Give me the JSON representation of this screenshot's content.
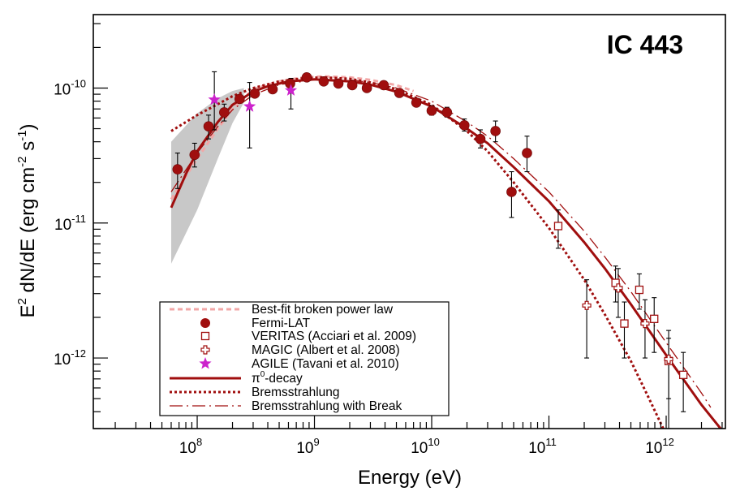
{
  "chart_data": {
    "type": "scatter",
    "title": "IC 443",
    "xlabel": "Energy (eV)",
    "ylabel": {
      "prefix": "E",
      "prefix_sup": "2",
      "mid": " dN/dE (erg cm",
      "sup1": "-2",
      "mid2": " s",
      "sup2": "-1",
      "suffix": ")"
    },
    "xscale": "log",
    "yscale": "log",
    "xlim": [
      13000000.0,
      3200000000000.0
    ],
    "ylim": [
      3e-13,
      3.5e-10
    ],
    "grid": false,
    "legend_position": "bottom-left",
    "x_ticks": [
      {
        "base": "10",
        "exp": "8",
        "value": 100000000.0
      },
      {
        "base": "10",
        "exp": "9",
        "value": 1000000000.0
      },
      {
        "base": "10",
        "exp": "10",
        "value": 10000000000.0
      },
      {
        "base": "10",
        "exp": "11",
        "value": 100000000000.0
      },
      {
        "base": "10",
        "exp": "12",
        "value": 1000000000000.0
      }
    ],
    "y_ticks": [
      {
        "base": "10",
        "exp": "-10",
        "value": 1e-10
      },
      {
        "base": "10",
        "exp": "-11",
        "value": 1e-11
      },
      {
        "base": "10",
        "exp": "-12",
        "value": 1e-12
      }
    ],
    "colors": {
      "dark_red": "#a00e0e",
      "light_pink": "#f2a7a7",
      "magenta": "#cc22cc",
      "band": "#c8c8c8",
      "error": "#000000"
    },
    "legend": [
      {
        "label": "Best-fit broken power law",
        "marker": "pink-dashed-line"
      },
      {
        "label": "Fermi-LAT",
        "marker": "filled-circle"
      },
      {
        "label": "VERITAS (Acciari et al. 2009)",
        "marker": "open-square"
      },
      {
        "label": "MAGIC (Albert et al. 2008)",
        "marker": "open-cross"
      },
      {
        "label": "AGILE (Tavani et al. 2010)",
        "marker": "star"
      },
      {
        "label_base": "π",
        "label_sup": "0",
        "label_rest": "-decay",
        "marker": "solid-line"
      },
      {
        "label": "Bremsstrahlung",
        "marker": "dotted-line"
      },
      {
        "label": "Bremsstrahlung with Break",
        "marker": "long-dash-line"
      }
    ],
    "series": [
      {
        "name": "Fermi-LAT",
        "marker": "filled-circle",
        "x": [
          68000000.0,
          95000000.0,
          125000000.0,
          170000000.0,
          230000000.0,
          310000000.0,
          440000000.0,
          620000000.0,
          860000000.0,
          1200000000.0,
          1600000000.0,
          2100000000.0,
          2800000000.0,
          3900000000.0,
          5300000000.0,
          7400000000.0,
          10000000000.0,
          13500000000.0,
          19000000000.0,
          26000000000.0,
          35000000000.0,
          48000000000.0,
          65000000000.0
        ],
        "y": [
          2.5e-11,
          3.2e-11,
          5.2e-11,
          6.6e-11,
          8.3e-11,
          9.1e-11,
          9.8e-11,
          1.08e-10,
          1.2e-10,
          1.12e-10,
          1.08e-10,
          1.05e-10,
          1e-10,
          1.05e-10,
          9.2e-11,
          7.8e-11,
          6.8e-11,
          6.6e-11,
          5.3e-11,
          4.2e-11,
          4.8e-11,
          1.7e-11,
          3.3e-11
        ],
        "y_err_low": [
          1.8e-11,
          2.6e-11,
          4.2e-11,
          5.7e-11,
          7.8e-11,
          8.7e-11,
          9.5e-11,
          1.05e-10,
          1.17e-10,
          1.1e-10,
          1.06e-10,
          1.03e-10,
          9.8e-11,
          1.02e-10,
          8.9e-11,
          7.4e-11,
          6.3e-11,
          6.1e-11,
          4.8e-11,
          3.6e-11,
          4e-11,
          1.1e-11,
          2.4e-11
        ],
        "y_err_high": [
          3.3e-11,
          3.9e-11,
          6.3e-11,
          7.6e-11,
          8.9e-11,
          9.5e-11,
          1.02e-10,
          1.12e-10,
          1.24e-10,
          1.15e-10,
          1.11e-10,
          1.08e-10,
          1.03e-10,
          1.09e-10,
          9.6e-11,
          8.3e-11,
          7.4e-11,
          7.2e-11,
          5.9e-11,
          4.9e-11,
          5.7e-11,
          2.4e-11,
          4.4e-11
        ]
      },
      {
        "name": "VERITAS (Acciari et al. 2009)",
        "marker": "open-square",
        "x": [
          120000000000.0,
          370000000000.0,
          440000000000.0,
          590000000000.0,
          790000000000.0,
          1050000000000.0,
          1400000000000.0
        ],
        "y": [
          9.5e-12,
          3.6e-12,
          1.8e-12,
          3.2e-12,
          1.95e-12,
          9.5e-13,
          7.5e-13
        ],
        "y_err_low": [
          6.5e-12,
          2.6e-12,
          1e-12,
          2.3e-12,
          1.1e-12,
          5e-13,
          4e-13
        ],
        "y_err_high": [
          1.25e-11,
          4.8e-12,
          2.6e-12,
          4.2e-12,
          2.8e-12,
          1.4e-12,
          1.1e-12
        ]
      },
      {
        "name": "MAGIC (Albert et al. 2008)",
        "marker": "open-cross",
        "x": [
          210000000000.0,
          390000000000.0,
          660000000000.0,
          1050000000000.0
        ],
        "y": [
          2.45e-12,
          3.3e-12,
          1.8e-12,
          9.8e-13
        ],
        "y_err_low": [
          1e-12,
          2e-12,
          1e-12,
          3e-13
        ],
        "y_err_high": [
          3.8e-12,
          4.6e-12,
          2.7e-12,
          1.6e-12
        ]
      },
      {
        "name": "AGILE (Tavani et al. 2010)",
        "marker": "star",
        "x": [
          140000000.0,
          280000000.0,
          630000000.0
        ],
        "y": [
          8.2e-11,
          7.3e-11,
          9.6e-11
        ],
        "y_err_low": [
          4.9e-11,
          3.6e-11,
          7e-11
        ],
        "y_err_high": [
          1.32e-10,
          1.1e-10,
          1.18e-10
        ]
      },
      {
        "name": "π0-decay",
        "style": "solid",
        "x": [
          60000000.0,
          80000000.0,
          100000000.0,
          150000000.0,
          200000000.0,
          300000000.0,
          400000000.0,
          600000000.0,
          1000000000.0,
          2000000000.0,
          3000000000.0,
          5000000000.0,
          10000000000.0,
          20000000000.0,
          30000000000.0,
          50000000000.0,
          100000000000.0,
          200000000000.0,
          300000000000.0,
          500000000000.0,
          1000000000000.0,
          2000000000000.0,
          3000000000000.0
        ],
        "y": [
          1.3e-11,
          2.3e-11,
          3.4e-11,
          5.6e-11,
          7.5e-11,
          9.4e-11,
          1.03e-10,
          1.12e-10,
          1.16e-10,
          1.12e-10,
          1.06e-10,
          9.4e-11,
          7.3e-11,
          5e-11,
          3.9e-11,
          2.6e-11,
          1.45e-11,
          7.2e-12,
          4.6e-12,
          2.5e-12,
          1.05e-12,
          4.5e-13,
          2.9e-13
        ]
      },
      {
        "name": "Bremsstrahlung",
        "style": "dotted",
        "x": [
          60000000.0,
          100000000.0,
          150000000.0,
          200000000.0,
          300000000.0,
          500000000.0,
          800000000.0,
          1200000000.0,
          2000000000.0,
          3000000000.0,
          5000000000.0,
          10000000000.0,
          20000000000.0,
          30000000000.0,
          50000000000.0,
          100000000000.0,
          200000000000.0,
          300000000000.0,
          500000000000.0,
          700000000000.0,
          1000000000000.0
        ],
        "y": [
          4.8e-11,
          6.3e-11,
          7.6e-11,
          8.7e-11,
          1e-10,
          1.12e-10,
          1.18e-10,
          1.2e-10,
          1.17e-10,
          1.1e-10,
          9.8e-11,
          7.5e-11,
          4.8e-11,
          3.4e-11,
          2e-11,
          9.2e-12,
          3.8e-12,
          2.1e-12,
          9.5e-13,
          5.2e-13,
          2.7e-13
        ]
      },
      {
        "name": "Bremsstrahlung with Break",
        "style": "long-dash",
        "x": [
          60000000.0,
          100000000.0,
          150000000.0,
          200000000.0,
          300000000.0,
          500000000.0,
          1000000000.0,
          2000000000.0,
          3000000000.0,
          5000000000.0,
          10000000000.0,
          20000000000.0,
          30000000000.0,
          50000000000.0,
          100000000000.0,
          200000000000.0,
          300000000000.0,
          500000000000.0,
          1000000000000.0,
          2000000000000.0,
          2400000000000.0
        ],
        "y": [
          1.7e-11,
          3.3e-11,
          5.2e-11,
          6.9e-11,
          8.9e-11,
          1.06e-10,
          1.15e-10,
          1.15e-10,
          1.1e-10,
          1e-10,
          8e-11,
          5.6e-11,
          4.4e-11,
          3e-11,
          1.7e-11,
          8.7e-12,
          5.6e-12,
          3.1e-12,
          1.3e-12,
          5.5e-13,
          4.3e-13
        ]
      },
      {
        "name": "Best-fit broken power law",
        "style": "pink-dashed",
        "x": [
          60000000.0,
          100000000.0,
          150000000.0,
          200000000.0,
          300000000.0,
          500000000.0,
          800000000.0,
          1200000000.0,
          2000000000.0,
          3000000000.0,
          5000000000.0,
          7000000000.0
        ],
        "y": [
          1.5e-11,
          3e-11,
          5e-11,
          7e-11,
          9.8e-11,
          1.12e-10,
          1.2e-10,
          1.22e-10,
          1.2e-10,
          1.15e-10,
          1.05e-10,
          9.5e-11
        ]
      },
      {
        "name": "uncertainty band",
        "style": "band",
        "x": [
          60000000.0,
          100000000.0,
          150000000.0,
          200000000.0,
          250000000.0
        ],
        "y_low": [
          5e-12,
          1.25e-11,
          3e-11,
          5.5e-11,
          7.8e-11
        ],
        "y_high": [
          4e-11,
          6.5e-11,
          8.4e-11,
          9.5e-11,
          1e-10
        ]
      }
    ]
  }
}
